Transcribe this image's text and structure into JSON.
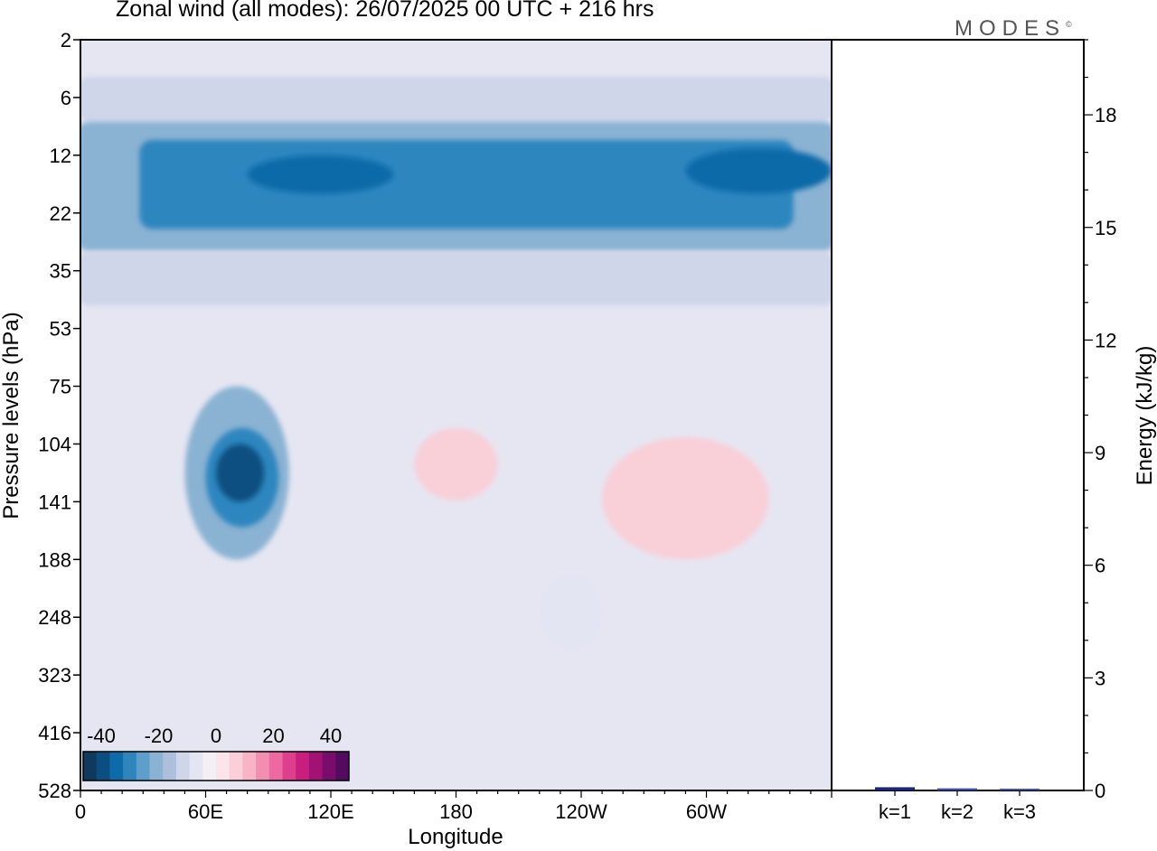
{
  "title": "Zonal wind (all modes):  26/07/2025  00 UTC  + 216 hrs",
  "brand": "MODES",
  "brand_mark": "©",
  "chart_data": [
    {
      "type": "heatmap",
      "name": "zonal-wind-section",
      "xlabel": "Longitude",
      "ylabel": "Pressure levels (hPa)",
      "x_ticks": [
        {
          "lon": 0,
          "label": "0"
        },
        {
          "lon": 60,
          "label": "60E"
        },
        {
          "lon": 120,
          "label": "120E"
        },
        {
          "lon": 180,
          "label": "180"
        },
        {
          "lon": 240,
          "label": "120W"
        },
        {
          "lon": 300,
          "label": "60W"
        }
      ],
      "xlim": [
        0,
        360
      ],
      "y_levels": [
        "2",
        "6",
        "12",
        "22",
        "35",
        "53",
        "75",
        "104",
        "141",
        "188",
        "248",
        "323",
        "416",
        "528"
      ],
      "colorbar": {
        "labels": [
          "-40",
          "-20",
          "0",
          "20",
          "40"
        ],
        "colors": [
          "#0e3a5e",
          "#0a4f80",
          "#0e6ba9",
          "#2f86bf",
          "#5d9fcb",
          "#8ab2d3",
          "#aebfdc",
          "#cfd6ea",
          "#e3e5f2",
          "#f4eef5",
          "#fbe4ea",
          "#f9cfd8",
          "#f7b4c6",
          "#f28fb1",
          "#ec6a9f",
          "#de3f8d",
          "#c81f7f",
          "#a21274",
          "#7a0d6a",
          "#520c5e"
        ]
      },
      "contour_bands": [
        {
          "lon": [
            0,
            360
          ],
          "top": "4",
          "bottom": "8",
          "wind": -15
        },
        {
          "lon": [
            0,
            360
          ],
          "top": "8",
          "bottom": "30",
          "wind": -25
        },
        {
          "lon": [
            30,
            340
          ],
          "top": "10",
          "bottom": "25",
          "wind": -35
        },
        {
          "lon": [
            80,
            150
          ],
          "top": "12",
          "bottom": "18",
          "wind": -40
        },
        {
          "lon": [
            290,
            360
          ],
          "top": "11",
          "bottom": "18",
          "wind": -40
        },
        {
          "lon": [
            0,
            360
          ],
          "top": "30",
          "bottom": "45",
          "wind": -15
        },
        {
          "lon": [
            50,
            100
          ],
          "top": "75",
          "bottom": "188",
          "wind": -25
        },
        {
          "lon": [
            60,
            95
          ],
          "top": "95",
          "bottom": "160",
          "wind": -35
        },
        {
          "lon": [
            65,
            88
          ],
          "top": "104",
          "bottom": "141",
          "wind": -45
        },
        {
          "lon": [
            160,
            200
          ],
          "top": "95",
          "bottom": "140",
          "wind": 6
        },
        {
          "lon": [
            250,
            330
          ],
          "top": "100",
          "bottom": "188",
          "wind": 6
        },
        {
          "lon": [
            220,
            250
          ],
          "top": "200",
          "bottom": "290",
          "wind": -8
        }
      ]
    },
    {
      "type": "bar",
      "name": "energy-spectrum",
      "categories": [
        "k=1",
        "k=2",
        "k=3"
      ],
      "values": [
        0.05,
        0.02,
        0.01
      ],
      "ylabel": "Energy (kJ/kg)",
      "ylim": [
        0,
        20
      ],
      "y_ticks": [
        "0",
        "3",
        "6",
        "9",
        "12",
        "15",
        "18"
      ]
    }
  ]
}
